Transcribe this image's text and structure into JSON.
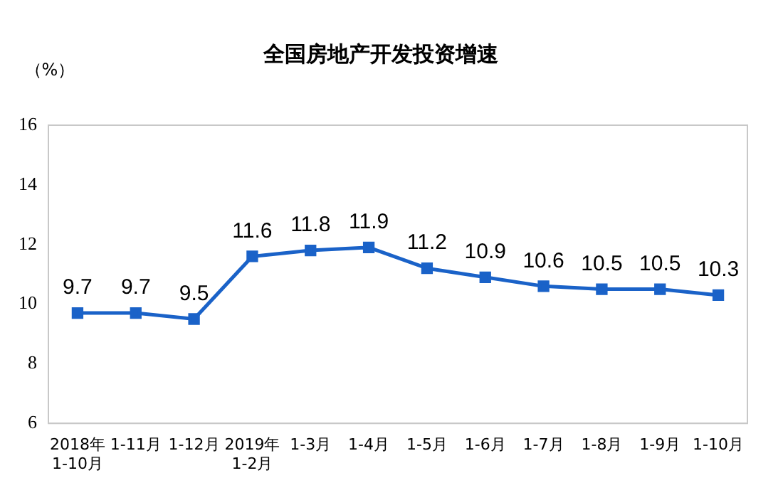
{
  "chart_data": {
    "type": "line",
    "title": "全国房地产开发投资增速",
    "ylabel": "（%）",
    "categories": [
      "2018年\n1-10月",
      "1-11月",
      "1-12月",
      "2019年\n1-2月",
      "1-3月",
      "1-4月",
      "1-5月",
      "1-6月",
      "1-7月",
      "1-8月",
      "1-9月",
      "1-10月"
    ],
    "series": [
      {
        "color": "#1a62c8",
        "values": [
          9.7,
          9.7,
          9.5,
          11.6,
          11.8,
          11.9,
          11.2,
          10.9,
          10.6,
          10.5,
          10.5,
          10.3
        ]
      }
    ],
    "ylim": [
      6,
      16
    ],
    "yticks": [
      6,
      8,
      10,
      12,
      14,
      16
    ],
    "grid": false,
    "legend": false,
    "marker": "square",
    "line_style": "solid",
    "data_labels": true
  }
}
